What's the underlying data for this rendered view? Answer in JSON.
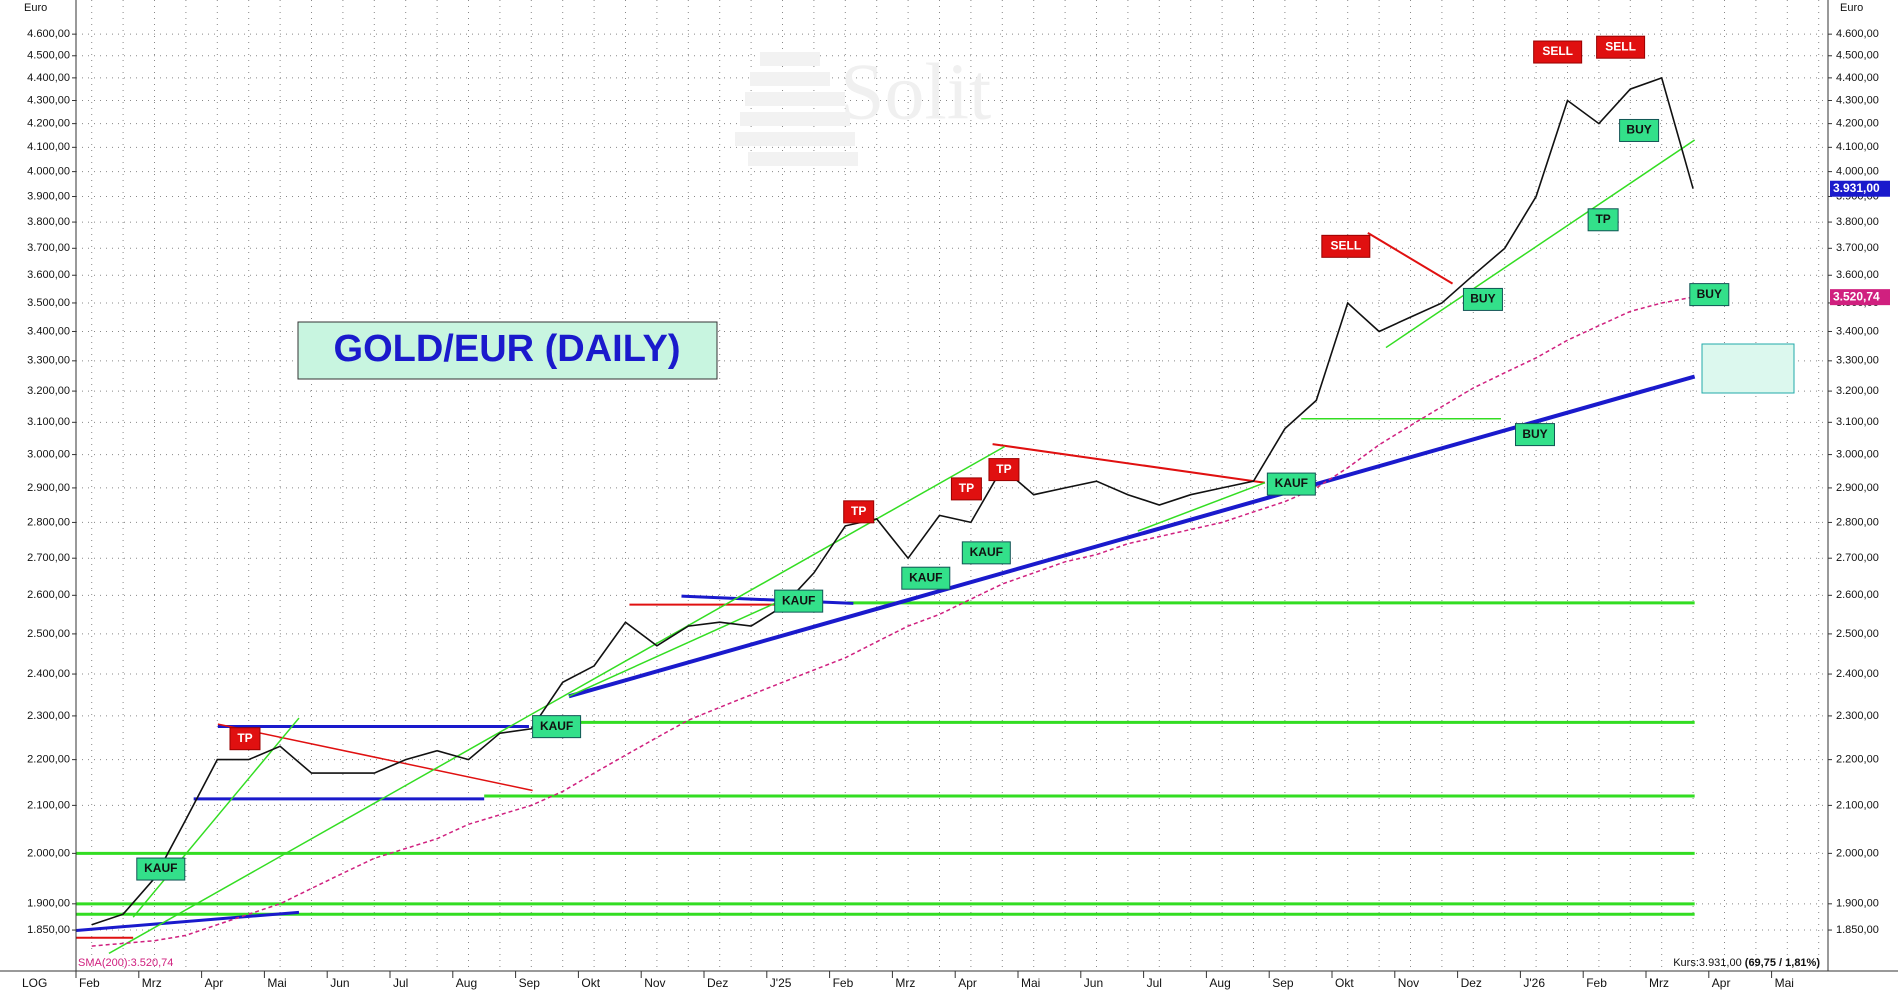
{
  "chart_data": {
    "type": "line",
    "title": "GOLD/EUR (DAILY)",
    "watermark": "Solit",
    "y_label": "Euro",
    "scale_label": "LOG",
    "log_scale": true,
    "grid": true,
    "ylim": [
      1800,
      4700
    ],
    "yticks": [
      {
        "value": 1850,
        "label": "1.850,00"
      },
      {
        "value": 1900,
        "label": "1.900,00"
      },
      {
        "value": 2000,
        "label": "2.000,00"
      },
      {
        "value": 2100,
        "label": "2.100,00"
      },
      {
        "value": 2200,
        "label": "2.200,00"
      },
      {
        "value": 2300,
        "label": "2.300,00"
      },
      {
        "value": 2400,
        "label": "2.400,00"
      },
      {
        "value": 2500,
        "label": "2.500,00"
      },
      {
        "value": 2600,
        "label": "2.600,00"
      },
      {
        "value": 2700,
        "label": "2.700,00"
      },
      {
        "value": 2800,
        "label": "2.800,00"
      },
      {
        "value": 2900,
        "label": "2.900,00"
      },
      {
        "value": 3000,
        "label": "3.000,00"
      },
      {
        "value": 3100,
        "label": "3.100,00"
      },
      {
        "value": 3200,
        "label": "3.200,00"
      },
      {
        "value": 3300,
        "label": "3.300,00"
      },
      {
        "value": 3400,
        "label": "3.400,00"
      },
      {
        "value": 3500,
        "label": "3.500,00"
      },
      {
        "value": 3600,
        "label": "3.600,00"
      },
      {
        "value": 3700,
        "label": "3.700,00"
      },
      {
        "value": 3800,
        "label": "3.800,00"
      },
      {
        "value": 3900,
        "label": "3.900,00"
      },
      {
        "value": 4000,
        "label": "4.000,00"
      },
      {
        "value": 4100,
        "label": "4.100,00"
      },
      {
        "value": 4200,
        "label": "4.200,00"
      },
      {
        "value": 4300,
        "label": "4.300,00"
      },
      {
        "value": 4400,
        "label": "4.400,00"
      },
      {
        "value": 4500,
        "label": "4.500,00"
      },
      {
        "value": 4600,
        "label": "4.600,00"
      }
    ],
    "categories": [
      "Feb",
      null,
      "Mrz",
      null,
      "Apr",
      null,
      "Mai",
      null,
      "Jun",
      null,
      "Jul",
      null,
      "Aug",
      null,
      "Sep",
      null,
      "Okt",
      null,
      "Nov",
      null,
      "Dez",
      null,
      "J'25",
      null,
      "Feb",
      null,
      "Mrz",
      null,
      "Apr",
      null,
      "Mai",
      null,
      "Jun",
      null,
      "Jul",
      null,
      "Aug",
      null,
      "Sep",
      null,
      "Okt",
      null,
      "Nov",
      null,
      "Dez",
      null,
      "J'26",
      null,
      "Feb",
      null,
      "Mrz",
      null,
      "Apr",
      null,
      "Mai",
      null
    ],
    "series": [
      {
        "color": "#111111",
        "values": [
          1860,
          1880,
          1950,
          2070,
          2200,
          2200,
          2230,
          2170,
          2170,
          2170,
          2200,
          2220,
          2200,
          2260,
          2270,
          2380,
          2420,
          2530,
          2470,
          2520,
          2530,
          2520,
          2570,
          2660,
          2790,
          2810,
          2700,
          2820,
          2800,
          2960,
          2880,
          2900,
          2920,
          2880,
          2850,
          2880,
          2900,
          2920,
          3080,
          3170,
          3500,
          3400,
          3450,
          3500,
          3600,
          3700,
          3900,
          4300,
          4200,
          4350,
          4400,
          3931,
          null,
          null,
          null,
          null
        ]
      },
      {
        "name": "SMA(200):3.520,74",
        "color": "#d0207f",
        "values": [
          1820,
          1825,
          1830,
          1840,
          1860,
          1880,
          1900,
          1930,
          1960,
          1990,
          2010,
          2030,
          2060,
          2080,
          2100,
          2130,
          2170,
          2210,
          2250,
          2290,
          2320,
          2350,
          2380,
          2410,
          2440,
          2480,
          2520,
          2550,
          2590,
          2630,
          2660,
          2690,
          2710,
          2740,
          2760,
          2780,
          2800,
          2830,
          2860,
          2900,
          2960,
          3030,
          3090,
          3150,
          3210,
          3260,
          3310,
          3370,
          3420,
          3470,
          3500,
          3520.74,
          null,
          null,
          null,
          null
        ]
      }
    ],
    "support_lines": {
      "color": "#33dd22",
      "values": [
        2580,
        2285,
        2120,
        2000,
        1900,
        1880
      ]
    },
    "price_tag": {
      "value": 3931,
      "label": "3.931,00",
      "color": "#1a1acc"
    },
    "sma_tag": {
      "value": 3520.74,
      "label": "3.520,74",
      "color": "#d0207f"
    },
    "quote": {
      "price": "Kurs:3.931,00",
      "change": "(69,75 / 1,81%)"
    },
    "signals": [
      {
        "text": "KAUF",
        "color": "#33e08a"
      },
      {
        "text": "TP",
        "color": "#e01010"
      },
      {
        "text": "KAUF",
        "color": "#33e08a"
      },
      {
        "text": "KAUF",
        "color": "#33e08a"
      },
      {
        "text": "TP",
        "color": "#e01010"
      },
      {
        "text": "KAUF",
        "color": "#33e08a"
      },
      {
        "text": "TP",
        "color": "#e01010"
      },
      {
        "text": "KAUF",
        "color": "#33e08a"
      },
      {
        "text": "TP",
        "color": "#e01010"
      },
      {
        "text": "KAUF",
        "color": "#33e08a"
      },
      {
        "text": "SELL",
        "color": "#e01010"
      },
      {
        "text": "BUY",
        "color": "#33e08a"
      },
      {
        "text": "BUY",
        "color": "#33e08a"
      },
      {
        "text": "SELL",
        "color": "#e01010"
      },
      {
        "text": "SELL",
        "color": "#e01010"
      },
      {
        "text": "BUY",
        "color": "#33e08a"
      },
      {
        "text": "TP",
        "color": "#33e08a"
      },
      {
        "text": "BUY",
        "color": "#33e08a"
      }
    ]
  }
}
